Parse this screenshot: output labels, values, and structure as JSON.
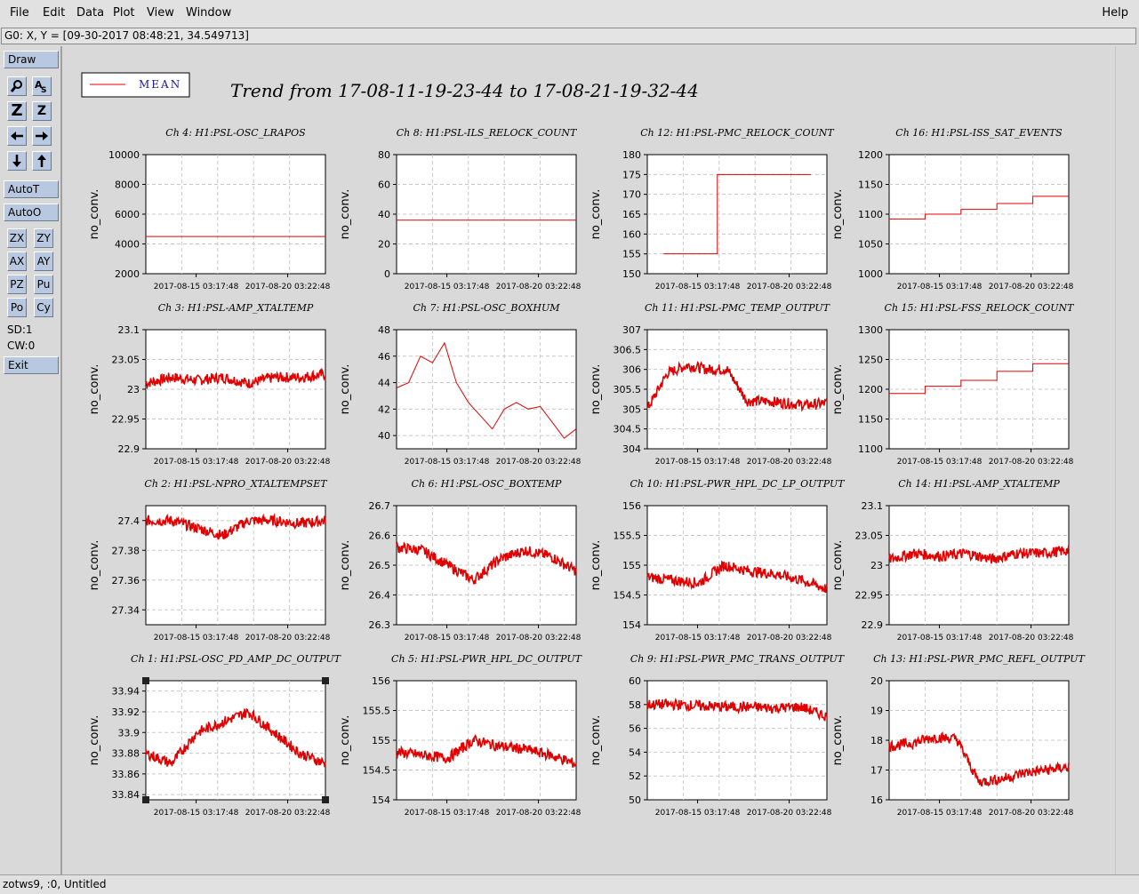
{
  "menu": {
    "file": "File",
    "edit": "Edit",
    "data": "Data",
    "plot": "Plot",
    "view": "View",
    "window": "Window",
    "help": "Help"
  },
  "coord_text": "G0: X, Y = [09-30-2017 08:48:21, 34.549713]",
  "toolbar": {
    "draw": "Draw",
    "autot": "AutoT",
    "autoo": "AutoO",
    "zoom_z": "Z",
    "zx": "ZX",
    "zy": "ZY",
    "ax": "AX",
    "ay": "AY",
    "pz": "PZ",
    "pu": "Pu",
    "po": "Po",
    "cy": "Cy",
    "sd": "SD:1",
    "cw": "CW:0",
    "exit": "Exit"
  },
  "legend_label": "MEAN",
  "plot_title": "Trend from 17-08-11-19-23-44 to 17-08-21-19-32-44",
  "status_text": "zotws9, :0, Untitled",
  "colors": {
    "trace": "#e00000",
    "legend_text": "#1a1aa0",
    "grid": "#c8c8c8"
  },
  "chart_data": [
    {
      "title": "Ch 4: H1:PSL-OSC_LRAPOS",
      "type": "line",
      "ylabel": "no_conv.",
      "yticks": [
        "10000",
        "8000",
        "6000",
        "4000",
        "2000"
      ],
      "ylim": [
        2000,
        10000
      ],
      "xticks": [
        "2017-08-15 03:17:48",
        "2017-08-20 03:22:48"
      ],
      "shape": "flat",
      "values": [
        4500
      ]
    },
    {
      "title": "Ch 8: H1:PSL-ILS_RELOCK_COUNT",
      "type": "line",
      "ylabel": "no_conv.",
      "yticks": [
        "80",
        "60",
        "40",
        "20",
        "0"
      ],
      "ylim": [
        0,
        80
      ],
      "xticks": [
        "2017-08-15 03:17:48",
        "2017-08-20 03:22:48"
      ],
      "shape": "flat",
      "values": [
        36
      ]
    },
    {
      "title": "Ch 12: H1:PSL-PMC_RELOCK_COUNT",
      "type": "line",
      "ylabel": "no_conv.",
      "yticks": [
        "180",
        "175",
        "170",
        "165",
        "160",
        "155",
        "150"
      ],
      "ylim": [
        150,
        180
      ],
      "xticks": [
        "2017-08-15 03:17:48",
        "2017-08-20 03:22:48"
      ],
      "shape": "step",
      "values": [
        155,
        175
      ]
    },
    {
      "title": "Ch 16: H1:PSL-ISS_SAT_EVENTS",
      "type": "line",
      "ylabel": "no_conv.",
      "yticks": [
        "1200",
        "1150",
        "1100",
        "1050",
        "1000"
      ],
      "ylim": [
        1000,
        1200
      ],
      "xticks": [
        "2017-08-15 03:17:48",
        "2017-08-20 03:22:48"
      ],
      "shape": "stairs",
      "values": [
        1092,
        1100,
        1108,
        1118,
        1130
      ]
    },
    {
      "title": "Ch 3: H1:PSL-AMP_XTALTEMP",
      "type": "line",
      "ylabel": "no_conv.",
      "yticks": [
        "23.1",
        "23.05",
        "23",
        "22.95",
        "22.9"
      ],
      "ylim": [
        22.9,
        23.1
      ],
      "xticks": [
        "2017-08-15 03:17:48",
        "2017-08-20 03:22:48"
      ],
      "shape": "noisy",
      "values": [
        23.01,
        23.02,
        23.015,
        23.02,
        23.01,
        23.02,
        23.02,
        23.025
      ]
    },
    {
      "title": "Ch 7: H1:PSL-OSC_BOXHUM",
      "type": "line",
      "ylabel": "no_conv.",
      "yticks": [
        "48",
        "46",
        "44",
        "42",
        "40"
      ],
      "ylim": [
        39,
        48
      ],
      "xticks": [
        "2017-08-15 03:17:48",
        "2017-08-20 03:22:48"
      ],
      "shape": "smooth",
      "values": [
        43.6,
        44,
        46,
        45.5,
        47,
        44,
        42.5,
        41.5,
        40.5,
        42,
        42.5,
        42,
        42.2,
        41,
        39.8,
        40.5
      ]
    },
    {
      "title": "Ch 11: H1:PSL-PMC_TEMP_OUTPUT",
      "type": "line",
      "ylabel": "no_conv.",
      "yticks": [
        "307",
        "306.5",
        "306",
        "305.5",
        "305",
        "304.5",
        "304"
      ],
      "ylim": [
        304,
        307
      ],
      "xticks": [
        "2017-08-15 03:17:48",
        "2017-08-20 03:22:48"
      ],
      "shape": "noisy",
      "values": [
        305,
        305.9,
        306.1,
        306,
        306,
        305.2,
        305.2,
        305.15,
        305.1,
        305.15
      ]
    },
    {
      "title": "Ch 15: H1:PSL-FSS_RELOCK_COUNT",
      "type": "line",
      "ylabel": "no_conv.",
      "yticks": [
        "1300",
        "1250",
        "1200",
        "1150",
        "1100"
      ],
      "ylim": [
        1100,
        1300
      ],
      "xticks": [
        "2017-08-15 03:17:48",
        "2017-08-20 03:22:48"
      ],
      "shape": "stairs",
      "values": [
        1193,
        1205,
        1215,
        1230,
        1243
      ]
    },
    {
      "title": "Ch 2: H1:PSL-NPRO_XTALTEMPSET",
      "type": "line",
      "ylabel": "no_conv.",
      "yticks": [
        "27.4",
        "27.38",
        "27.36",
        "27.34"
      ],
      "ylim": [
        27.33,
        27.41
      ],
      "xticks": [
        "2017-08-15 03:17:48",
        "2017-08-20 03:22:48"
      ],
      "shape": "noisy",
      "values": [
        27.4,
        27.4,
        27.395,
        27.39,
        27.4,
        27.4,
        27.398,
        27.4
      ]
    },
    {
      "title": "Ch 6: H1:PSL-OSC_BOXTEMP",
      "type": "line",
      "ylabel": "no_conv.",
      "yticks": [
        "26.7",
        "26.6",
        "26.5",
        "26.4",
        "26.3"
      ],
      "ylim": [
        26.3,
        26.7
      ],
      "xticks": [
        "2017-08-15 03:17:48",
        "2017-08-20 03:22:48"
      ],
      "shape": "noisy",
      "values": [
        26.56,
        26.55,
        26.5,
        26.45,
        26.52,
        26.55,
        26.53,
        26.48
      ]
    },
    {
      "title": "Ch 10: H1:PSL-PWR_HPL_DC_LP_OUTPUT",
      "type": "line",
      "ylabel": "no_conv.",
      "yticks": [
        "156",
        "155.5",
        "155",
        "154.5",
        "154"
      ],
      "ylim": [
        154,
        156
      ],
      "xticks": [
        "2017-08-15 03:17:48",
        "2017-08-20 03:22:48"
      ],
      "shape": "noisy",
      "values": [
        154.8,
        154.75,
        154.7,
        155,
        154.9,
        154.85,
        154.75,
        154.6
      ]
    },
    {
      "title": "Ch 14: H1:PSL-AMP_XTALTEMP",
      "type": "line",
      "ylabel": "no_conv.",
      "yticks": [
        "23.1",
        "23.05",
        "23",
        "22.95",
        "22.9"
      ],
      "ylim": [
        22.9,
        23.1
      ],
      "xticks": [
        "2017-08-15 03:17:48",
        "2017-08-20 03:22:48"
      ],
      "shape": "noisy",
      "values": [
        23.01,
        23.02,
        23.015,
        23.02,
        23.01,
        23.02,
        23.02,
        23.025
      ]
    },
    {
      "title": "Ch 1: H1:PSL-OSC_PD_AMP_DC_OUTPUT",
      "type": "line",
      "ylabel": "no_conv.",
      "yticks": [
        "33.94",
        "33.92",
        "33.9",
        "33.88",
        "33.86",
        "33.84"
      ],
      "ylim": [
        33.835,
        33.95
      ],
      "xticks": [
        "2017-08-15 03:17:48",
        "2017-08-20 03:22:48"
      ],
      "shape": "noisy",
      "values": [
        33.88,
        33.87,
        33.9,
        33.91,
        33.92,
        33.9,
        33.88,
        33.87
      ]
    },
    {
      "title": "Ch 5: H1:PSL-PWR_HPL_DC_OUTPUT",
      "type": "line",
      "ylabel": "no_conv.",
      "yticks": [
        "156",
        "155.5",
        "155",
        "154.5",
        "154"
      ],
      "ylim": [
        154,
        156
      ],
      "xticks": [
        "2017-08-15 03:17:48",
        "2017-08-20 03:22:48"
      ],
      "shape": "noisy",
      "values": [
        154.8,
        154.75,
        154.7,
        155,
        154.9,
        154.85,
        154.75,
        154.6
      ]
    },
    {
      "title": "Ch 9: H1:PSL-PWR_PMC_TRANS_OUTPUT",
      "type": "line",
      "ylabel": "no_conv.",
      "yticks": [
        "60",
        "58",
        "56",
        "54",
        "52",
        "50"
      ],
      "ylim": [
        50,
        60
      ],
      "xticks": [
        "2017-08-15 03:17:48",
        "2017-08-20 03:22:48"
      ],
      "shape": "noisy",
      "values": [
        58,
        58,
        57.9,
        57.8,
        57.8,
        57.7,
        57.8,
        57
      ]
    },
    {
      "title": "Ch 13: H1:PSL-PWR_PMC_REFL_OUTPUT",
      "type": "line",
      "ylabel": "no_conv.",
      "yticks": [
        "20",
        "19",
        "18",
        "17",
        "16"
      ],
      "ylim": [
        16,
        20
      ],
      "xticks": [
        "2017-08-15 03:17:48",
        "2017-08-20 03:22:48"
      ],
      "shape": "noisy",
      "values": [
        17.8,
        17.9,
        18.1,
        18.05,
        16.6,
        16.7,
        16.9,
        17.0,
        17.1
      ]
    }
  ]
}
